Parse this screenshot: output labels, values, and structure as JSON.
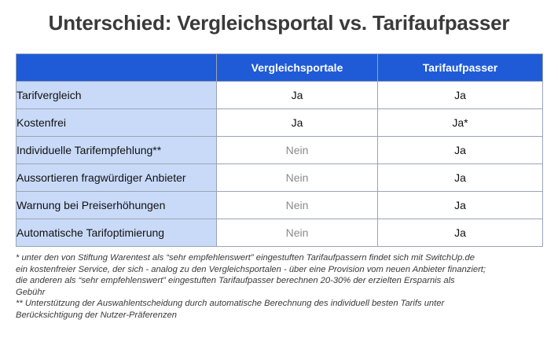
{
  "title": "Unterschied: Vergleichsportal vs. Tarifaufpasser",
  "table": {
    "headers": [
      "",
      "Vergleichsportale",
      "Tarifaufpasser"
    ],
    "rows": [
      {
        "label": "Tarifvergleich",
        "portal": "Ja",
        "aufpasser": "Ja"
      },
      {
        "label": "Kostenfrei",
        "portal": "Ja",
        "aufpasser": "Ja*"
      },
      {
        "label": "Individuelle Tarifempfehlung**",
        "portal": "Nein",
        "aufpasser": "Ja"
      },
      {
        "label": "Aussortieren fragwürdiger Anbieter",
        "portal": "Nein",
        "aufpasser": "Ja"
      },
      {
        "label": "Warnung bei Preiserhöhungen",
        "portal": "Nein",
        "aufpasser": "Ja"
      },
      {
        "label": "Automatische Tarifoptimierung",
        "portal": "Nein",
        "aufpasser": "Ja"
      }
    ]
  },
  "footnotes": [
    "* unter den von Stiftung Warentest als “sehr empfehlenswert” eingestuften Tarifaufpassern findet sich mit SwitchUp.de",
    "ein kostenfreier Service, der sich - analog zu den Vergleichsportalen - über eine Provision vom neuen Anbieter finanziert;",
    "die anderen als “sehr empfehlenswert” eingestuften Tarifaufpasser berechnen 20-30% der erzielten Ersparnis als",
    "Gebühr",
    "** Unterstützung der Auswahlentscheidung durch automatische Berechnung des individuell besten Tarifs unter",
    "Berücksichtigung der Nutzer-Präferenzen"
  ],
  "colors": {
    "header_bg": "#1f5bd6",
    "label_bg": "#c9daf8",
    "nein_text": "#8a8a8a"
  }
}
